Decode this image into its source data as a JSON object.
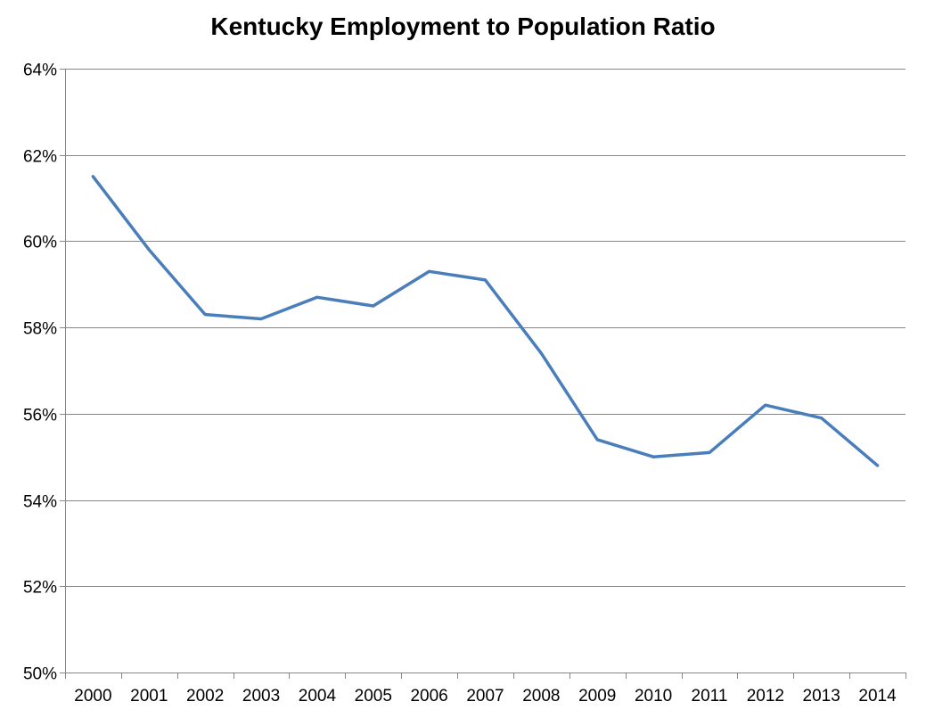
{
  "chart_data": {
    "type": "line",
    "title": "Kentucky Employment to Population Ratio",
    "xlabel": "",
    "ylabel": "",
    "categories": [
      "2000",
      "2001",
      "2002",
      "2003",
      "2004",
      "2005",
      "2006",
      "2007",
      "2008",
      "2009",
      "2010",
      "2011",
      "2012",
      "2013",
      "2014"
    ],
    "series": [
      {
        "values": [
          61.5,
          59.8,
          58.3,
          58.2,
          58.7,
          58.5,
          59.3,
          59.1,
          57.4,
          55.4,
          55.0,
          55.1,
          56.2,
          55.9,
          54.8
        ],
        "color": "#4a7ebb"
      }
    ],
    "ylim": [
      50,
      64
    ],
    "y_ticks": [
      50,
      52,
      54,
      56,
      58,
      60,
      62,
      64
    ],
    "y_tick_labels": [
      "50%",
      "52%",
      "54%",
      "56%",
      "58%",
      "60%",
      "62%",
      "64%"
    ],
    "grid": true,
    "grid_color": "#868686",
    "legend": "none"
  }
}
